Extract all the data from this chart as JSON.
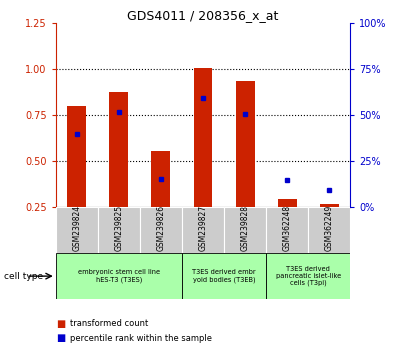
{
  "title": "GDS4011 / 208356_x_at",
  "samples": [
    "GSM239824",
    "GSM239825",
    "GSM239826",
    "GSM239827",
    "GSM239828",
    "GSM362248",
    "GSM362249"
  ],
  "transformed_count": [
    0.8,
    0.875,
    0.555,
    1.005,
    0.935,
    0.295,
    0.265
  ],
  "percentile_rank": [
    0.645,
    0.765,
    0.405,
    0.845,
    0.755,
    0.395,
    0.345
  ],
  "bar_bottom": 0.25,
  "ylim": [
    0.25,
    1.25
  ],
  "ylim_right": [
    0,
    100
  ],
  "yticks_left": [
    0.25,
    0.5,
    0.75,
    1.0,
    1.25
  ],
  "yticks_right": [
    0,
    25,
    50,
    75,
    100
  ],
  "bar_color": "#cc2200",
  "dot_color": "#0000cc",
  "bar_width": 0.45,
  "cell_type_groups": [
    {
      "start": 0,
      "end": 2,
      "label": "embryonic stem cell line\nhES-T3 (T3ES)"
    },
    {
      "start": 3,
      "end": 4,
      "label": "T3ES derived embr\nyoid bodies (T3EB)"
    },
    {
      "start": 5,
      "end": 6,
      "label": "T3ES derived\npancreatic islet-like\ncells (T3pi)"
    }
  ],
  "sample_bg_color": "#cccccc",
  "cell_type_bg_color": "#aaffaa",
  "cell_type_border_color": "#000000",
  "legend_red_label": "transformed count",
  "legend_blue_label": "percentile rank within the sample",
  "cell_type_label": "cell type",
  "left_axis_color": "#cc2200",
  "right_axis_color": "#0000cc",
  "dotted_lines": [
    0.5,
    0.75,
    1.0
  ]
}
